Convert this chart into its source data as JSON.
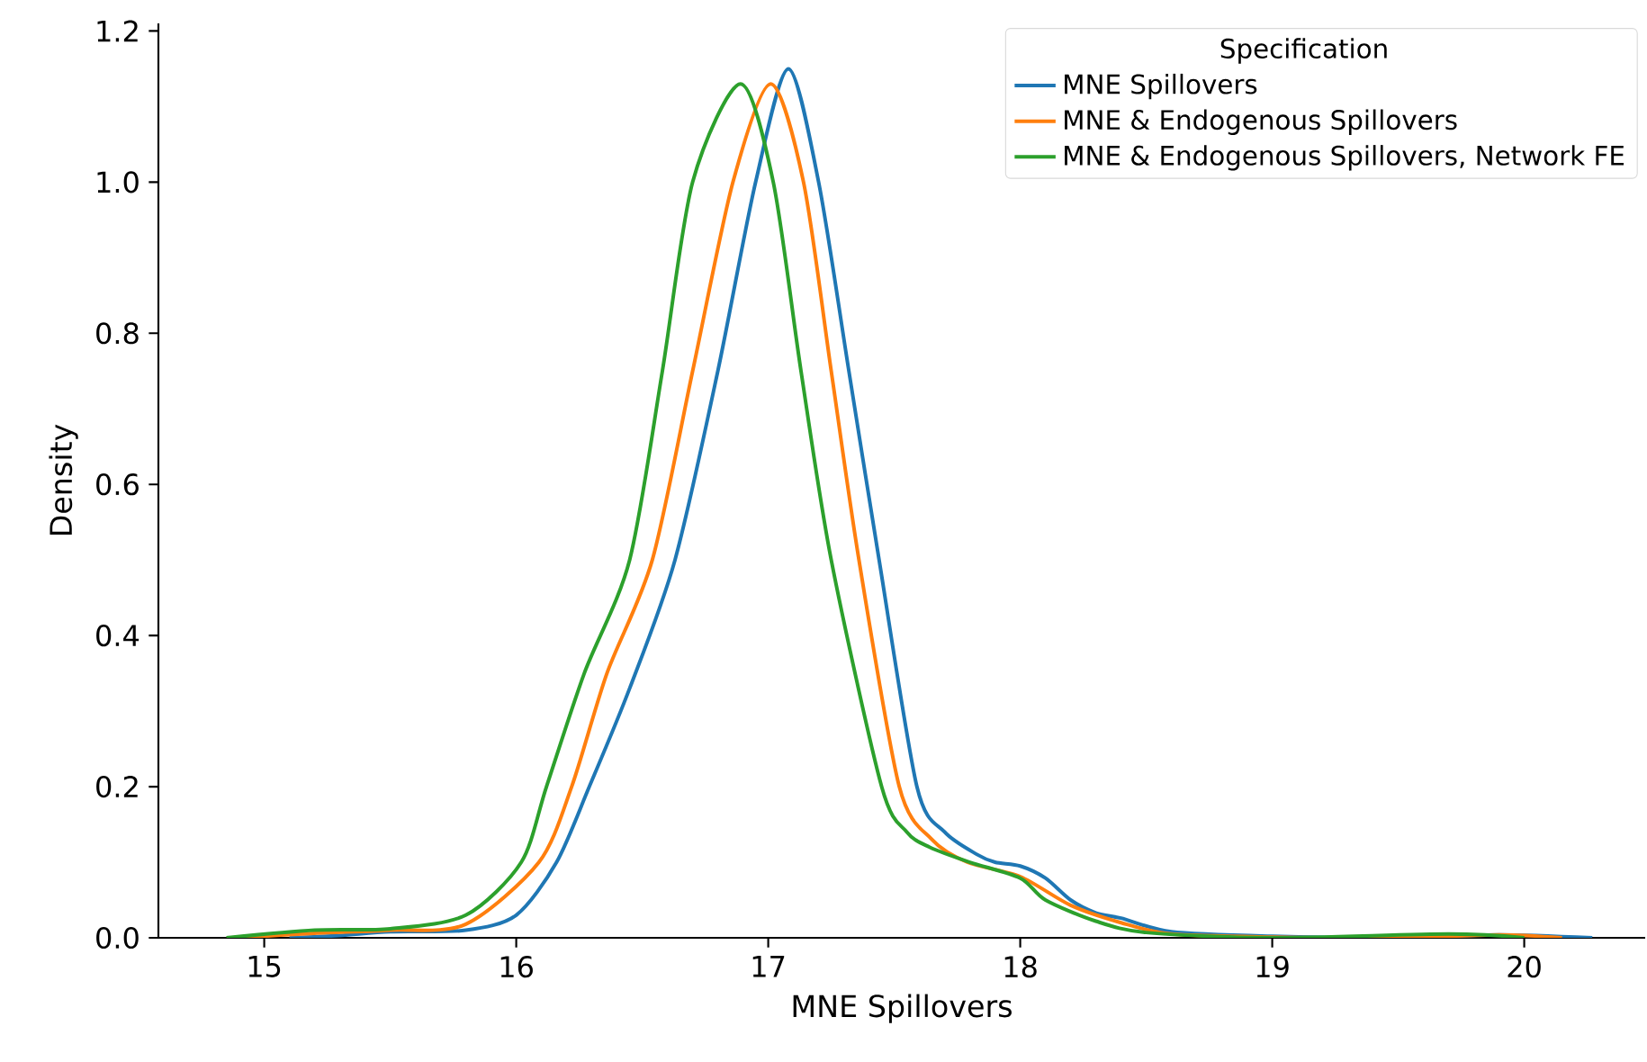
{
  "chart_data": {
    "type": "line",
    "xlabel": "MNE Spillovers",
    "ylabel": "Density",
    "legend_title": "Specification",
    "legend": "top right",
    "xlim": [
      14.58,
      20.48
    ],
    "ylim": [
      0,
      1.21
    ],
    "xticks": [
      15,
      16,
      17,
      18,
      19,
      20
    ],
    "yticks": [
      {
        "value": 0,
        "label": "0.0"
      },
      0.2,
      0.4,
      0.6,
      0.8,
      {
        "value": 1,
        "label": "1.0"
      },
      1.2
    ],
    "series": [
      {
        "name": "MNE Spillovers",
        "color": "#1f77b4",
        "x": [
          15.1,
          15.3,
          15.5,
          15.8,
          16.0,
          16.16,
          16.29,
          16.45,
          16.63,
          16.8,
          16.95,
          17.08,
          17.2,
          17.32,
          17.44,
          17.59,
          17.7,
          17.83,
          17.9,
          18.0,
          18.1,
          18.2,
          18.3,
          18.4,
          18.6,
          19.0,
          19.5,
          19.9,
          20.27
        ],
        "values": [
          0,
          0.003,
          0.008,
          0.01,
          0.03,
          0.1,
          0.2,
          0.33,
          0.5,
          0.75,
          1.0,
          1.15,
          1.0,
          0.75,
          0.5,
          0.2,
          0.14,
          0.11,
          0.1,
          0.095,
          0.079,
          0.05,
          0.033,
          0.026,
          0.008,
          0.002,
          0,
          0.004,
          0
        ]
      },
      {
        "name": "MNE & Endogenous Spillovers",
        "color": "#ff7f0e",
        "x": [
          14.9,
          15.2,
          15.5,
          15.8,
          16.09,
          16.22,
          16.36,
          16.54,
          16.7,
          16.86,
          17.01,
          17.14,
          17.25,
          17.36,
          17.52,
          17.65,
          17.79,
          18.0,
          18.2,
          18.4,
          18.6,
          19.0,
          19.5,
          19.9,
          20.15
        ],
        "values": [
          0,
          0.006,
          0.01,
          0.018,
          0.1,
          0.2,
          0.35,
          0.5,
          0.75,
          1.0,
          1.13,
          1.0,
          0.75,
          0.5,
          0.2,
          0.13,
          0.1,
          0.081,
          0.043,
          0.02,
          0.005,
          0.001,
          0,
          0.004,
          0
        ]
      },
      {
        "name": "MNE & Endogenous Spillovers, Network FE",
        "color": "#2ca02c",
        "x": [
          14.85,
          15.2,
          15.5,
          15.8,
          16.02,
          16.12,
          16.27,
          16.45,
          16.58,
          16.7,
          16.89,
          17.02,
          17.13,
          17.25,
          17.45,
          17.55,
          17.64,
          17.8,
          18.0,
          18.1,
          18.3,
          18.5,
          19.0,
          19.7,
          20.0
        ],
        "values": [
          0,
          0.01,
          0.012,
          0.03,
          0.1,
          0.2,
          0.35,
          0.5,
          0.75,
          1.0,
          1.13,
          1.0,
          0.75,
          0.5,
          0.2,
          0.14,
          0.12,
          0.1,
          0.079,
          0.05,
          0.022,
          0.007,
          0,
          0.005,
          0
        ]
      }
    ]
  }
}
